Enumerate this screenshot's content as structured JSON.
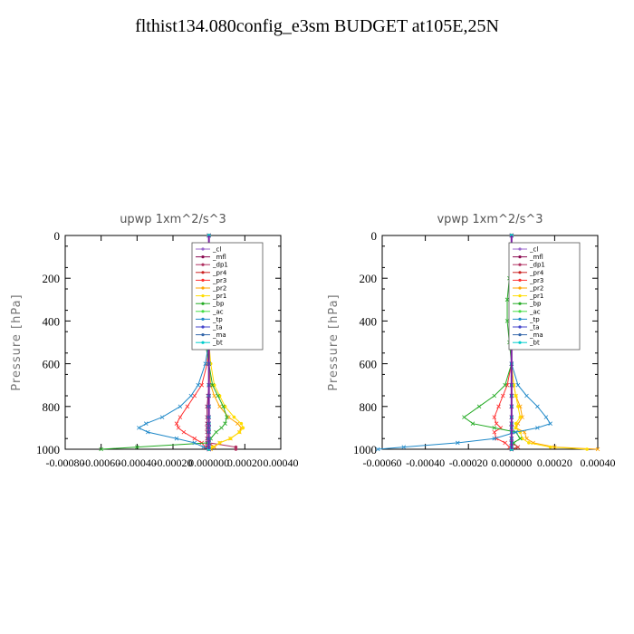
{
  "figure": {
    "title": "flthist134.080config_e3sm  BUDGET at105E,25N"
  },
  "chart_data": [
    {
      "type": "line",
      "title": "upwp   1xm^2/s^3",
      "ylabel": "Pressure [hPa]",
      "ylim": [
        1000,
        0
      ],
      "xlim": [
        -0.0008,
        0.0004
      ],
      "xticks": [
        -0.0008,
        -0.0006,
        -0.0004,
        -0.0002,
        0.0,
        0.0002,
        0.0004
      ],
      "xtick_labels": [
        "-0.00080",
        "-0.00060",
        "-0.00040",
        "-0.00020",
        "0.000000",
        "0.00020",
        "0.00040"
      ],
      "yticks": [
        0,
        200,
        400,
        600,
        800,
        1000
      ],
      "ytick_labels": [
        "0",
        "200",
        "400",
        "600",
        "800",
        "1000"
      ],
      "legend_position": "top-right",
      "pressure": [
        0,
        100,
        200,
        300,
        400,
        500,
        600,
        700,
        750,
        800,
        850,
        880,
        900,
        920,
        950,
        970,
        990,
        1000
      ],
      "series": [
        {
          "name": "_cl",
          "color": "#9966cc",
          "marker": "x",
          "values": [
            0,
            0,
            0,
            0,
            0,
            0,
            0,
            0,
            0,
            0,
            0,
            0,
            0,
            0,
            0,
            0,
            0,
            0
          ]
        },
        {
          "name": "_mfl",
          "color": "#8b0a50",
          "marker": "x",
          "values": [
            0,
            0,
            0,
            0,
            0,
            0,
            0,
            0,
            -5e-06,
            -1e-05,
            -1e-05,
            -1e-05,
            -1e-05,
            -1e-05,
            -1e-05,
            -1e-05,
            -1e-05,
            0
          ]
        },
        {
          "name": "_dp1",
          "color": "#b03060",
          "marker": "circle",
          "values": [
            0,
            0,
            0,
            0,
            0,
            0,
            0,
            0,
            0,
            0,
            0,
            0,
            0,
            0,
            0,
            0,
            0.00015,
            0.00015
          ]
        },
        {
          "name": "_pr4",
          "color": "#cc2222",
          "marker": "x",
          "values": [
            0,
            0,
            0,
            0,
            0,
            0,
            0,
            0,
            0,
            0,
            0,
            0,
            0,
            0,
            0,
            0,
            3e-05,
            0
          ]
        },
        {
          "name": "_pr3",
          "color": "#ff3030",
          "marker": "x",
          "values": [
            0,
            0,
            0,
            0,
            0,
            0,
            -1e-05,
            -4e-05,
            -8e-05,
            -0.00012,
            -0.00016,
            -0.00018,
            -0.00017,
            -0.00014,
            -8e-05,
            -4e-05,
            -2e-05,
            0
          ]
        },
        {
          "name": "_pr2",
          "color": "#ffa500",
          "marker": "x",
          "values": [
            0,
            0,
            0,
            0,
            0,
            0,
            0,
            1e-05,
            3e-05,
            6e-05,
            0.00011,
            0.00016,
            0.00018,
            0.00017,
            0.00012,
            6e-05,
            3e-05,
            1e-05
          ]
        },
        {
          "name": "_pr1",
          "color": "#ffdd00",
          "marker": "circle",
          "values": [
            0,
            0,
            0,
            0,
            0,
            0,
            1e-05,
            3e-05,
            6e-05,
            9e-05,
            0.00014,
            0.00018,
            0.00019,
            0.00017,
            0.00012,
            6e-05,
            2e-05,
            0
          ]
        },
        {
          "name": "_bp",
          "color": "#22aa22",
          "marker": "x",
          "values": [
            0,
            0,
            0,
            -1e-05,
            -3e-05,
            -2e-05,
            0,
            2e-05,
            5e-05,
            8e-05,
            0.0001,
            9e-05,
            7e-05,
            4e-05,
            1e-05,
            0,
            -0.0004,
            -0.0006
          ]
        },
        {
          "name": "_ac",
          "color": "#44dd44",
          "marker": "circle",
          "values": [
            0,
            0,
            0,
            0,
            0,
            0,
            0,
            0,
            0,
            0,
            0,
            0,
            0,
            0,
            0,
            0,
            0,
            0
          ]
        },
        {
          "name": "_tp",
          "color": "#1e88c8",
          "marker": "x",
          "values": [
            0,
            0,
            0,
            0,
            0,
            0,
            -2e-05,
            -6e-05,
            -0.0001,
            -0.00016,
            -0.00026,
            -0.00035,
            -0.00039,
            -0.00034,
            -0.00018,
            -8e-05,
            -3e-05,
            0
          ]
        },
        {
          "name": "_ta",
          "color": "#4444cc",
          "marker": "x",
          "values": [
            0,
            0,
            0,
            0,
            0,
            0,
            0,
            0,
            0,
            0,
            0,
            0,
            0,
            0,
            0,
            0,
            0,
            0
          ]
        },
        {
          "name": "_ma",
          "color": "#3366aa",
          "marker": "line",
          "values": [
            0,
            0,
            0,
            0,
            0,
            0,
            0,
            0,
            0,
            0,
            0,
            0,
            0,
            0,
            0,
            0,
            0,
            0
          ]
        },
        {
          "name": "_bt",
          "color": "#00cccc",
          "marker": "circle",
          "values": [
            0,
            0,
            0,
            0,
            0,
            0,
            0,
            0,
            0,
            0,
            0,
            0,
            0,
            0,
            0,
            0,
            0,
            0
          ]
        }
      ]
    },
    {
      "type": "line",
      "title": "vpwp   1xm^2/s^3",
      "ylabel": "Pressure [hPa]",
      "ylim": [
        1000,
        0
      ],
      "xlim": [
        -0.0006,
        0.0004
      ],
      "xticks": [
        -0.0006,
        -0.0004,
        -0.0002,
        0.0,
        0.0002,
        0.0004
      ],
      "xtick_labels": [
        "-0.00060",
        "-0.00040",
        "-0.00020",
        "0.000000",
        "0.00020",
        "0.00040"
      ],
      "yticks": [
        0,
        200,
        400,
        600,
        800,
        1000
      ],
      "ytick_labels": [
        "0",
        "200",
        "400",
        "600",
        "800",
        "1000"
      ],
      "legend_position": "top-right",
      "pressure": [
        0,
        100,
        200,
        300,
        400,
        500,
        600,
        700,
        750,
        800,
        850,
        880,
        900,
        920,
        950,
        970,
        990,
        1000
      ],
      "series": [
        {
          "name": "_cl",
          "color": "#9966cc",
          "marker": "x",
          "values": [
            0,
            0,
            0,
            0,
            0,
            0,
            0,
            0,
            0,
            0,
            0,
            0,
            0,
            0,
            0,
            0,
            0,
            0
          ]
        },
        {
          "name": "_mfl",
          "color": "#8b0a50",
          "marker": "x",
          "values": [
            0,
            0,
            0,
            0,
            0,
            0,
            0,
            0,
            0,
            0,
            0,
            0,
            0,
            0,
            0,
            0,
            0,
            0
          ]
        },
        {
          "name": "_dp1",
          "color": "#b03060",
          "marker": "circle",
          "values": [
            0,
            0,
            0,
            0,
            0,
            0,
            0,
            0,
            0,
            0,
            0,
            0,
            0,
            0,
            0,
            0,
            0,
            0
          ]
        },
        {
          "name": "_pr4",
          "color": "#cc2222",
          "marker": "x",
          "values": [
            0,
            0,
            0,
            0,
            0,
            0,
            0,
            0,
            0,
            0,
            0,
            0,
            0,
            0,
            0,
            0,
            3e-05,
            0
          ]
        },
        {
          "name": "_pr3",
          "color": "#ff3030",
          "marker": "x",
          "values": [
            0,
            0,
            0,
            0,
            0,
            0,
            0,
            -2e-05,
            -4e-05,
            -6e-05,
            -8e-05,
            -7e-05,
            -5e-05,
            -8e-05,
            -7e-05,
            -3e-05,
            -1e-05,
            0
          ]
        },
        {
          "name": "_pr2",
          "color": "#ffa500",
          "marker": "x",
          "values": [
            0,
            0,
            0,
            0,
            0,
            0,
            0,
            1e-05,
            2e-05,
            4e-05,
            5e-05,
            3e-05,
            2e-05,
            6e-05,
            7e-05,
            0.0001,
            0.0002,
            0.0004
          ]
        },
        {
          "name": "_pr1",
          "color": "#ffdd00",
          "marker": "circle",
          "values": [
            0,
            0,
            0,
            0,
            0,
            0,
            0,
            1e-05,
            2e-05,
            3e-05,
            4e-05,
            2e-05,
            2e-05,
            4e-05,
            5e-05,
            8e-05,
            0.00018,
            0.00035
          ]
        },
        {
          "name": "_bp",
          "color": "#22aa22",
          "marker": "x",
          "values": [
            0,
            0,
            -1e-05,
            -2e-05,
            -2e-05,
            -1e-05,
            0,
            -3e-05,
            -8e-05,
            -0.00015,
            -0.00022,
            -0.00018,
            -8e-05,
            2e-05,
            4e-05,
            1e-05,
            0,
            0
          ]
        },
        {
          "name": "_ac",
          "color": "#44dd44",
          "marker": "circle",
          "values": [
            0,
            0,
            0,
            0,
            0,
            0,
            0,
            0,
            0,
            0,
            0,
            0,
            0,
            0,
            0,
            0,
            0,
            0
          ]
        },
        {
          "name": "_tp",
          "color": "#1e88c8",
          "marker": "x",
          "values": [
            0,
            0,
            0,
            0,
            0,
            0,
            0,
            3e-05,
            7e-05,
            0.00012,
            0.00016,
            0.00018,
            0.00012,
            2e-05,
            -8e-05,
            -0.00025,
            -0.0005,
            -0.00062
          ]
        },
        {
          "name": "_ta",
          "color": "#4444cc",
          "marker": "x",
          "values": [
            0,
            0,
            0,
            0,
            0,
            0,
            0,
            0,
            0,
            0,
            0,
            0,
            0,
            0,
            0,
            0,
            0,
            0
          ]
        },
        {
          "name": "_ma",
          "color": "#3366aa",
          "marker": "line",
          "values": [
            0,
            0,
            0,
            0,
            0,
            0,
            0,
            0,
            0,
            0,
            0,
            0,
            0,
            0,
            0,
            0,
            0,
            0
          ]
        },
        {
          "name": "_bt",
          "color": "#00cccc",
          "marker": "circle",
          "values": [
            0,
            0,
            0,
            0,
            0,
            0,
            0,
            0,
            0,
            0,
            0,
            0,
            0,
            0,
            0,
            0,
            0,
            0
          ]
        }
      ]
    }
  ]
}
